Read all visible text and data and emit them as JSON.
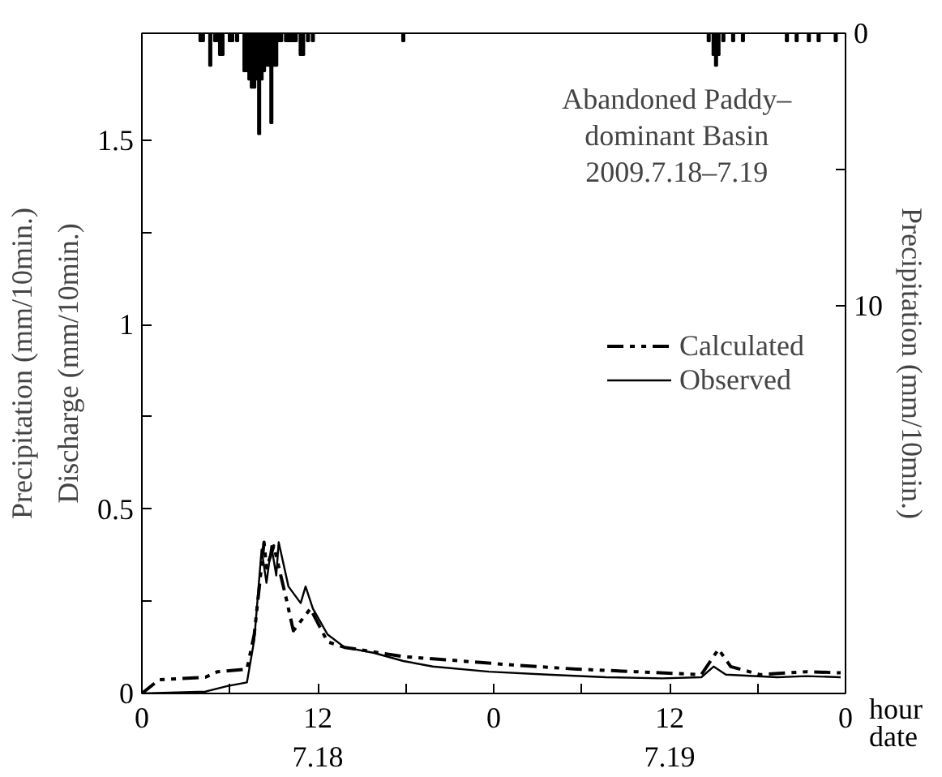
{
  "chart_data": {
    "type": "line",
    "title": "Abandoned Paddy–dominant Basin",
    "subtitle": "2009.7.18–7.19",
    "xlabel": "hour\ndate",
    "ylabel": "Discharge (mm/10min.)",
    "y2label": "Precipitation (mm/10min.)",
    "annotations": [
      "Precipitation (mm/10min.)"
    ],
    "xlim": [
      "2009-07-18T00:00",
      "2009-07-20T00:00"
    ],
    "ylim": [
      0,
      1.79
    ],
    "y2lim": [
      24.2,
      0
    ],
    "xticks": [
      {
        "value": "2009-07-18T00:00",
        "label": "0"
      },
      {
        "value": "2009-07-18T06:00",
        "label": null
      },
      {
        "value": "2009-07-18T12:00",
        "label": "12\n7.18"
      },
      {
        "value": "2009-07-18T18:00",
        "label": null
      },
      {
        "value": "2009-07-19T00:00",
        "label": "0"
      },
      {
        "value": "2009-07-19T06:00",
        "label": null
      },
      {
        "value": "2009-07-19T12:00",
        "label": "12\n7.19"
      },
      {
        "value": "2009-07-19T18:00",
        "label": null
      },
      {
        "value": "2009-07-20T00:00",
        "label": "0"
      }
    ],
    "yticks": [
      0,
      {
        "value": 0.25,
        "label": null
      },
      0.5,
      {
        "value": 0.75,
        "label": null
      },
      1,
      {
        "value": 1.25,
        "label": null
      },
      1.5
    ],
    "y2ticks": [
      0,
      {
        "value": 5,
        "label": null
      },
      10
    ],
    "grid": false,
    "legend": "right",
    "series": [
      {
        "type": "bar",
        "axis": "y2",
        "color": "#000000",
        "x": [
          "2009-07-18T04:00",
          "2009-07-18T04:10",
          "2009-07-18T04:40",
          "2009-07-18T05:00",
          "2009-07-18T05:10",
          "2009-07-18T05:20",
          "2009-07-18T05:30",
          "2009-07-18T06:00",
          "2009-07-18T06:10",
          "2009-07-18T06:30",
          "2009-07-18T07:00",
          "2009-07-18T07:10",
          "2009-07-18T07:20",
          "2009-07-18T07:30",
          "2009-07-18T07:40",
          "2009-07-18T07:50",
          "2009-07-18T08:00",
          "2009-07-18T08:10",
          "2009-07-18T08:20",
          "2009-07-18T08:30",
          "2009-07-18T08:40",
          "2009-07-18T08:50",
          "2009-07-18T09:00",
          "2009-07-18T09:10",
          "2009-07-18T09:20",
          "2009-07-18T09:30",
          "2009-07-18T09:50",
          "2009-07-18T10:00",
          "2009-07-18T10:10",
          "2009-07-18T10:20",
          "2009-07-18T10:30",
          "2009-07-18T10:50",
          "2009-07-18T11:00",
          "2009-07-18T11:20",
          "2009-07-18T11:40",
          "2009-07-18T17:50",
          "2009-07-19T14:40",
          "2009-07-19T15:00",
          "2009-07-19T15:10",
          "2009-07-19T15:20",
          "2009-07-19T15:40",
          "2009-07-19T16:20",
          "2009-07-19T17:00",
          "2009-07-19T20:00",
          "2009-07-19T20:40",
          "2009-07-19T21:30",
          "2009-07-19T22:10",
          "2009-07-19T23:20"
        ],
        "values": [
          0.3,
          0.3,
          1.2,
          0.3,
          0.3,
          0.8,
          0.8,
          0.3,
          0.3,
          0.3,
          1.4,
          1.4,
          1.7,
          2.0,
          2.0,
          1.7,
          3.7,
          1.7,
          1.4,
          1.2,
          1.2,
          3.3,
          1.2,
          1.2,
          0.3,
          0.3,
          0.3,
          0.3,
          0.3,
          0.3,
          0.3,
          0.8,
          0.8,
          0.3,
          0.3,
          0.3,
          0.3,
          0.8,
          1.2,
          0.8,
          0.3,
          0.3,
          0.3,
          0.3,
          0.3,
          0.3,
          0.3,
          0.3
        ]
      },
      {
        "name": "Calculated",
        "color": "#000000",
        "line_style": "dashed",
        "x": [
          "2009-07-18T00:00",
          "2009-07-18T01:10",
          "2009-07-18T04:20",
          "2009-07-18T05:10",
          "2009-07-18T07:10",
          "2009-07-18T07:40",
          "2009-07-18T08:20",
          "2009-07-18T08:30",
          "2009-07-18T09:00",
          "2009-07-18T09:50",
          "2009-07-18T10:20",
          "2009-07-18T11:30",
          "2009-07-18T12:40",
          "2009-07-18T13:50",
          "2009-07-18T17:50",
          "2009-07-18T21:50",
          "2009-07-19T01:40",
          "2009-07-19T05:40",
          "2009-07-19T09:40",
          "2009-07-19T14:10",
          "2009-07-19T15:20",
          "2009-07-19T16:10",
          "2009-07-19T18:10",
          "2009-07-19T21:20",
          "2009-07-19T23:40"
        ],
        "values": [
          0,
          0.037,
          0.044,
          0.059,
          0.066,
          0.16,
          0.41,
          0.34,
          0.4,
          0.26,
          0.17,
          0.23,
          0.14,
          0.125,
          0.1,
          0.088,
          0.076,
          0.066,
          0.059,
          0.051,
          0.12,
          0.073,
          0.051,
          0.059,
          0.056
        ]
      },
      {
        "name": "Observed",
        "color": "#000000",
        "line_style": "solid",
        "x": [
          "2009-07-18T00:00",
          "2009-07-18T04:20",
          "2009-07-18T05:50",
          "2009-07-18T07:10",
          "2009-07-18T07:40",
          "2009-07-18T08:10",
          "2009-07-18T08:30",
          "2009-07-18T08:50",
          "2009-07-18T09:10",
          "2009-07-18T09:20",
          "2009-07-18T10:00",
          "2009-07-18T10:50",
          "2009-07-18T11:10",
          "2009-07-18T11:40",
          "2009-07-18T12:40",
          "2009-07-18T13:50",
          "2009-07-18T15:50",
          "2009-07-18T17:50",
          "2009-07-18T19:50",
          "2009-07-18T23:40",
          "2009-07-19T03:40",
          "2009-07-19T07:40",
          "2009-07-19T11:30",
          "2009-07-19T14:10",
          "2009-07-19T15:00",
          "2009-07-19T15:50",
          "2009-07-19T19:20",
          "2009-07-19T21:20",
          "2009-07-19T23:40"
        ],
        "values": [
          0,
          0.005,
          0.02,
          0.03,
          0.145,
          0.39,
          0.3,
          0.4,
          0.32,
          0.41,
          0.29,
          0.245,
          0.29,
          0.23,
          0.16,
          0.125,
          0.11,
          0.088,
          0.073,
          0.059,
          0.051,
          0.044,
          0.041,
          0.044,
          0.073,
          0.051,
          0.044,
          0.047,
          0.044
        ]
      }
    ]
  }
}
